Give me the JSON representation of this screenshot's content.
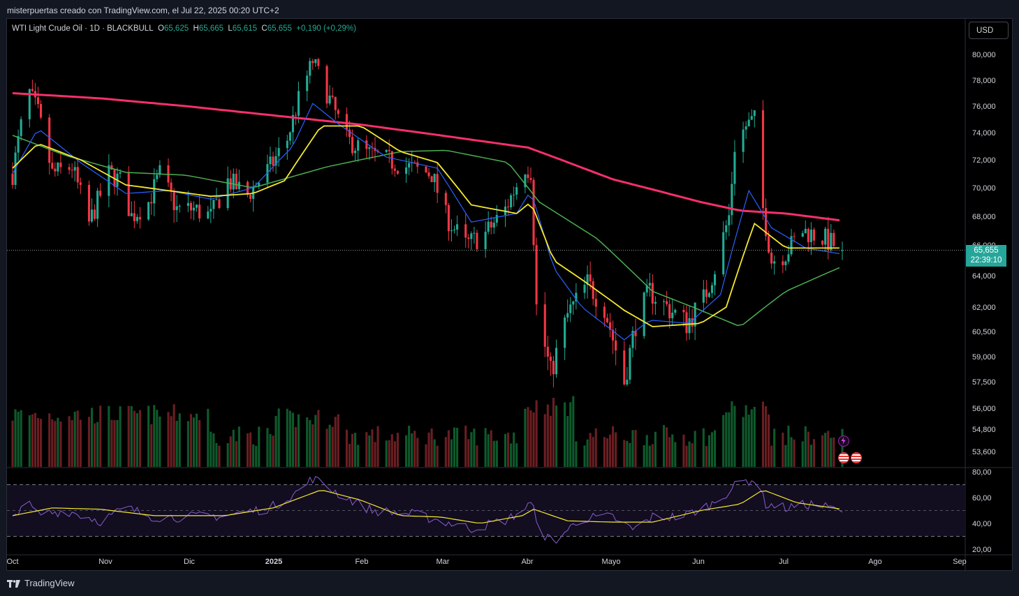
{
  "header": {
    "caption": "misterpuertas creado con TradingView.com, el Jul 22, 2025 00:20 UTC+2"
  },
  "legend": {
    "symbol": "WTI Light Crude Oil · 1D · BLACKBULL",
    "o_label": "O",
    "o": "65,625",
    "h_label": "H",
    "h": "65,665",
    "l_label": "L",
    "l": "65,615",
    "c_label": "C",
    "c": "65,655",
    "change": "+0,190 (+0,29%)"
  },
  "currency_button": "USD",
  "last_price": {
    "price": "65,655",
    "countdown": "22:39:10"
  },
  "footer": {
    "brand": "TradingView"
  },
  "colors": {
    "up": "#22ab94",
    "down": "#f23645",
    "ma_red": "#f7306b",
    "ma_yellow": "#f5e82f",
    "ma_green": "#4caf50",
    "ma_blue": "#2962ff",
    "rsi": "#7e57c2",
    "rsi_ma": "#f5e82f"
  },
  "chart_data": {
    "type": "candlestick",
    "price_axis_ticks": [
      "80,000",
      "78,000",
      "76,000",
      "74,000",
      "72,000",
      "70,000",
      "68,000",
      "66,000",
      "64,000",
      "62,000",
      "60,500",
      "59,000",
      "57,500",
      "56,000",
      "54,800",
      "53,600"
    ],
    "time_axis_ticks": [
      "Oct",
      "Nov",
      "Dic",
      "2025",
      "Feb",
      "Mar",
      "Abr",
      "Mayo",
      "Jun",
      "Jul",
      "Ago",
      "Sep"
    ],
    "rsi_axis_ticks": [
      "80,00",
      "60,00",
      "40,00",
      "20,00"
    ],
    "rsi_bands": [
      70,
      30
    ],
    "rsi_mid": 50,
    "anchors": [
      [
        "2024-10-01",
        71.0
      ],
      [
        "2024-10-04",
        74.5
      ],
      [
        "2024-10-07",
        77.0
      ],
      [
        "2024-10-10",
        75.5
      ],
      [
        "2024-10-15",
        71.0
      ],
      [
        "2024-10-22",
        71.5
      ],
      [
        "2024-10-28",
        67.5
      ],
      [
        "2024-11-04",
        71.0
      ],
      [
        "2024-11-08",
        70.5
      ],
      [
        "2024-11-12",
        68.0
      ],
      [
        "2024-11-18",
        69.0
      ],
      [
        "2024-11-22",
        71.0
      ],
      [
        "2024-11-28",
        68.5
      ],
      [
        "2024-12-04",
        68.5
      ],
      [
        "2024-12-10",
        68.0
      ],
      [
        "2024-12-16",
        70.5
      ],
      [
        "2024-12-23",
        69.5
      ],
      [
        "2024-12-31",
        71.5
      ],
      [
        "2025-01-06",
        73.5
      ],
      [
        "2025-01-10",
        76.5
      ],
      [
        "2025-01-15",
        79.5
      ],
      [
        "2025-01-20",
        77.0
      ],
      [
        "2025-01-27",
        73.5
      ],
      [
        "2025-02-03",
        72.5
      ],
      [
        "2025-02-10",
        72.0
      ],
      [
        "2025-02-17",
        71.5
      ],
      [
        "2025-02-26",
        71.0
      ],
      [
        "2025-03-03",
        68.0
      ],
      [
        "2025-03-10",
        66.0
      ],
      [
        "2025-03-17",
        66.8
      ],
      [
        "2025-03-24",
        68.5
      ],
      [
        "2025-03-31",
        71.5
      ],
      [
        "2025-04-02",
        71.2
      ],
      [
        "2025-04-04",
        62.0
      ],
      [
        "2025-04-09",
        58.0
      ],
      [
        "2025-04-15",
        61.5
      ],
      [
        "2025-04-22",
        63.5
      ],
      [
        "2025-04-28",
        62.0
      ],
      [
        "2025-05-05",
        57.5
      ],
      [
        "2025-05-09",
        61.0
      ],
      [
        "2025-05-14",
        63.0
      ],
      [
        "2025-05-20",
        62.0
      ],
      [
        "2025-05-27",
        61.0
      ],
      [
        "2025-06-02",
        62.5
      ],
      [
        "2025-06-06",
        64.5
      ],
      [
        "2025-06-11",
        68.0
      ],
      [
        "2025-06-13",
        73.0
      ],
      [
        "2025-06-17",
        74.5
      ],
      [
        "2025-06-20",
        75.0
      ],
      [
        "2025-06-23",
        68.5
      ],
      [
        "2025-06-26",
        65.0
      ],
      [
        "2025-07-01",
        65.5
      ],
      [
        "2025-07-07",
        67.0
      ],
      [
        "2025-07-14",
        66.5
      ],
      [
        "2025-07-21",
        65.655
      ]
    ],
    "ma_red_pts": [
      [
        "2024-10-01",
        77.0
      ],
      [
        "2024-11-01",
        76.6
      ],
      [
        "2024-12-01",
        76.0
      ],
      [
        "2025-01-01",
        75.3
      ],
      [
        "2025-02-01",
        74.6
      ],
      [
        "2025-03-01",
        73.8
      ],
      [
        "2025-04-01",
        72.9
      ],
      [
        "2025-05-01",
        70.6
      ],
      [
        "2025-06-01",
        69.0
      ],
      [
        "2025-06-15",
        68.4
      ],
      [
        "2025-07-01",
        68.2
      ],
      [
        "2025-07-21",
        67.7
      ]
    ],
    "ma_green_pts": [
      [
        "2024-10-01",
        73.8
      ],
      [
        "2024-10-20",
        72.3
      ],
      [
        "2024-11-10",
        71.1
      ],
      [
        "2024-12-01",
        70.9
      ],
      [
        "2024-12-25",
        70.0
      ],
      [
        "2025-01-20",
        71.5
      ],
      [
        "2025-02-15",
        72.6
      ],
      [
        "2025-03-03",
        72.7
      ],
      [
        "2025-03-25",
        71.8
      ],
      [
        "2025-04-05",
        69.0
      ],
      [
        "2025-04-25",
        66.5
      ],
      [
        "2025-05-15",
        63.0
      ],
      [
        "2025-06-01",
        61.8
      ],
      [
        "2025-06-15",
        60.8
      ],
      [
        "2025-07-01",
        63.0
      ],
      [
        "2025-07-21",
        64.6
      ]
    ],
    "ma_yellow_pts": [
      [
        "2024-10-01",
        71.4
      ],
      [
        "2024-10-10",
        73.2
      ],
      [
        "2024-10-25",
        72.0
      ],
      [
        "2024-11-10",
        70.2
      ],
      [
        "2024-11-25",
        69.8
      ],
      [
        "2024-12-10",
        69.4
      ],
      [
        "2024-12-25",
        69.6
      ],
      [
        "2025-01-05",
        70.5
      ],
      [
        "2025-01-18",
        74.5
      ],
      [
        "2025-02-01",
        74.5
      ],
      [
        "2025-02-15",
        72.6
      ],
      [
        "2025-02-28",
        71.8
      ],
      [
        "2025-03-12",
        68.8
      ],
      [
        "2025-03-28",
        68.2
      ],
      [
        "2025-04-02",
        69.0
      ],
      [
        "2025-04-10",
        65.0
      ],
      [
        "2025-04-22",
        63.5
      ],
      [
        "2025-05-05",
        61.8
      ],
      [
        "2025-05-15",
        60.8
      ],
      [
        "2025-06-01",
        61.0
      ],
      [
        "2025-06-10",
        62.0
      ],
      [
        "2025-06-20",
        67.5
      ],
      [
        "2025-07-01",
        65.8
      ],
      [
        "2025-07-21",
        65.8
      ]
    ],
    "ma_blue_pts": [
      [
        "2024-10-01",
        71.0
      ],
      [
        "2024-10-10",
        74.3
      ],
      [
        "2024-10-25",
        71.8
      ],
      [
        "2024-11-10",
        69.6
      ],
      [
        "2024-11-25",
        69.8
      ],
      [
        "2024-12-10",
        69.2
      ],
      [
        "2024-12-25",
        70.0
      ],
      [
        "2025-01-08",
        73.0
      ],
      [
        "2025-01-15",
        76.2
      ],
      [
        "2025-01-25",
        74.5
      ],
      [
        "2025-02-10",
        72.2
      ],
      [
        "2025-02-28",
        71.4
      ],
      [
        "2025-03-12",
        67.6
      ],
      [
        "2025-03-28",
        68.2
      ],
      [
        "2025-04-02",
        69.8
      ],
      [
        "2025-04-10",
        64.5
      ],
      [
        "2025-04-20",
        62.0
      ],
      [
        "2025-05-05",
        60.0
      ],
      [
        "2025-05-14",
        61.2
      ],
      [
        "2025-05-28",
        61.0
      ],
      [
        "2025-06-08",
        62.8
      ],
      [
        "2025-06-18",
        69.8
      ],
      [
        "2025-06-26",
        67.2
      ],
      [
        "2025-07-08",
        65.8
      ],
      [
        "2025-07-21",
        65.4
      ]
    ],
    "rsi_pts": [
      [
        "2024-10-01",
        43
      ],
      [
        "2024-10-05",
        58
      ],
      [
        "2024-10-10",
        47
      ],
      [
        "2024-10-20",
        50
      ],
      [
        "2024-11-01",
        42
      ],
      [
        "2024-11-10",
        52
      ],
      [
        "2024-11-20",
        45
      ],
      [
        "2024-12-01",
        45
      ],
      [
        "2024-12-15",
        46
      ],
      [
        "2024-12-31",
        52
      ],
      [
        "2025-01-10",
        65
      ],
      [
        "2025-01-15",
        75
      ],
      [
        "2025-01-25",
        62
      ],
      [
        "2025-02-05",
        50
      ],
      [
        "2025-02-20",
        47
      ],
      [
        "2025-03-05",
        40
      ],
      [
        "2025-03-12",
        36
      ],
      [
        "2025-03-25",
        43
      ],
      [
        "2025-04-02",
        55
      ],
      [
        "2025-04-07",
        30
      ],
      [
        "2025-04-10",
        26
      ],
      [
        "2025-04-20",
        44
      ],
      [
        "2025-05-01",
        45
      ],
      [
        "2025-05-08",
        35
      ],
      [
        "2025-05-15",
        45
      ],
      [
        "2025-05-25",
        45
      ],
      [
        "2025-06-05",
        55
      ],
      [
        "2025-06-15",
        72
      ],
      [
        "2025-06-20",
        74
      ],
      [
        "2025-06-24",
        55
      ],
      [
        "2025-07-01",
        52
      ],
      [
        "2025-07-10",
        55
      ],
      [
        "2025-07-21",
        50
      ]
    ],
    "rsi_ma_pts": [
      [
        "2024-10-01",
        46
      ],
      [
        "2024-10-15",
        52
      ],
      [
        "2024-11-01",
        51
      ],
      [
        "2024-11-20",
        46
      ],
      [
        "2024-12-15",
        46
      ],
      [
        "2025-01-01",
        52
      ],
      [
        "2025-01-18",
        66
      ],
      [
        "2025-02-01",
        58
      ],
      [
        "2025-02-15",
        46
      ],
      [
        "2025-03-01",
        45
      ],
      [
        "2025-03-15",
        40
      ],
      [
        "2025-03-30",
        46
      ],
      [
        "2025-04-03",
        51
      ],
      [
        "2025-04-15",
        42
      ],
      [
        "2025-05-01",
        41
      ],
      [
        "2025-05-15",
        41
      ],
      [
        "2025-06-01",
        50
      ],
      [
        "2025-06-15",
        55
      ],
      [
        "2025-06-23",
        66
      ],
      [
        "2025-07-05",
        56
      ],
      [
        "2025-07-21",
        51
      ]
    ]
  }
}
